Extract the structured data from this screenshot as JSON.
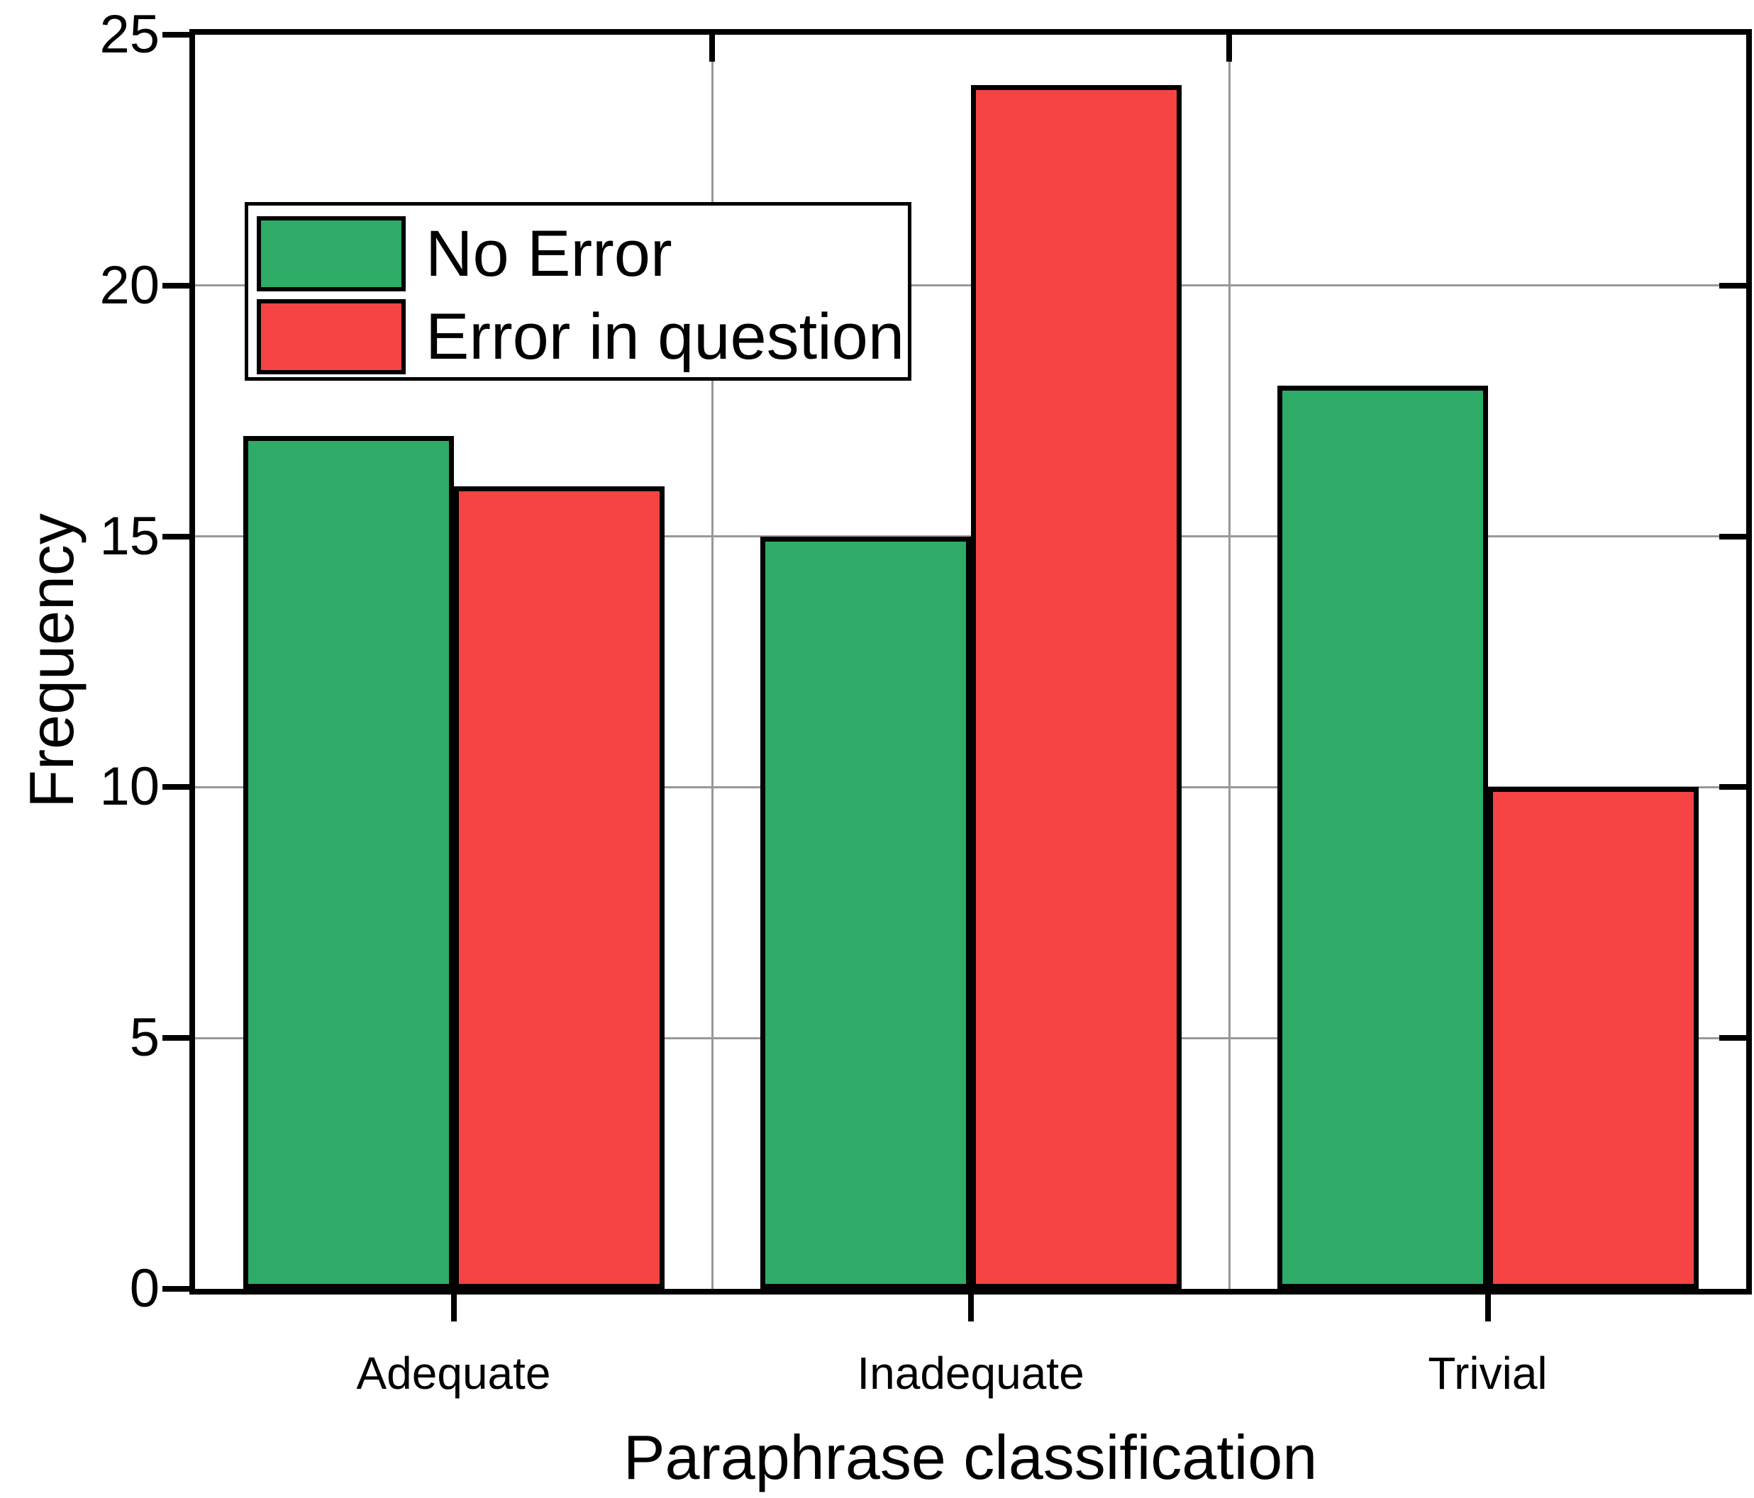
{
  "chart_data": {
    "type": "bar",
    "title": "",
    "xlabel": "Paraphrase classification",
    "ylabel": "Frequency",
    "categories": [
      "Adequate",
      "Inadequate",
      "Trivial"
    ],
    "series": [
      {
        "name": "No Error",
        "color": "#2eab66",
        "values": [
          17,
          15,
          18
        ]
      },
      {
        "name": "Error in question",
        "color": "#f64343",
        "values": [
          16,
          24,
          10
        ]
      }
    ],
    "ylim": [
      0,
      25
    ],
    "yticks": [
      0,
      5,
      10,
      15,
      20,
      25
    ],
    "grid": {
      "horizontal": [
        5,
        10,
        15,
        20
      ],
      "vertical": "category-boundaries",
      "color": "#989898"
    },
    "axis_color": "#000000",
    "bar_edge_color": "#000000",
    "legend": {
      "position": "upper-left",
      "entries": [
        "No Error",
        "Error in question"
      ]
    }
  }
}
